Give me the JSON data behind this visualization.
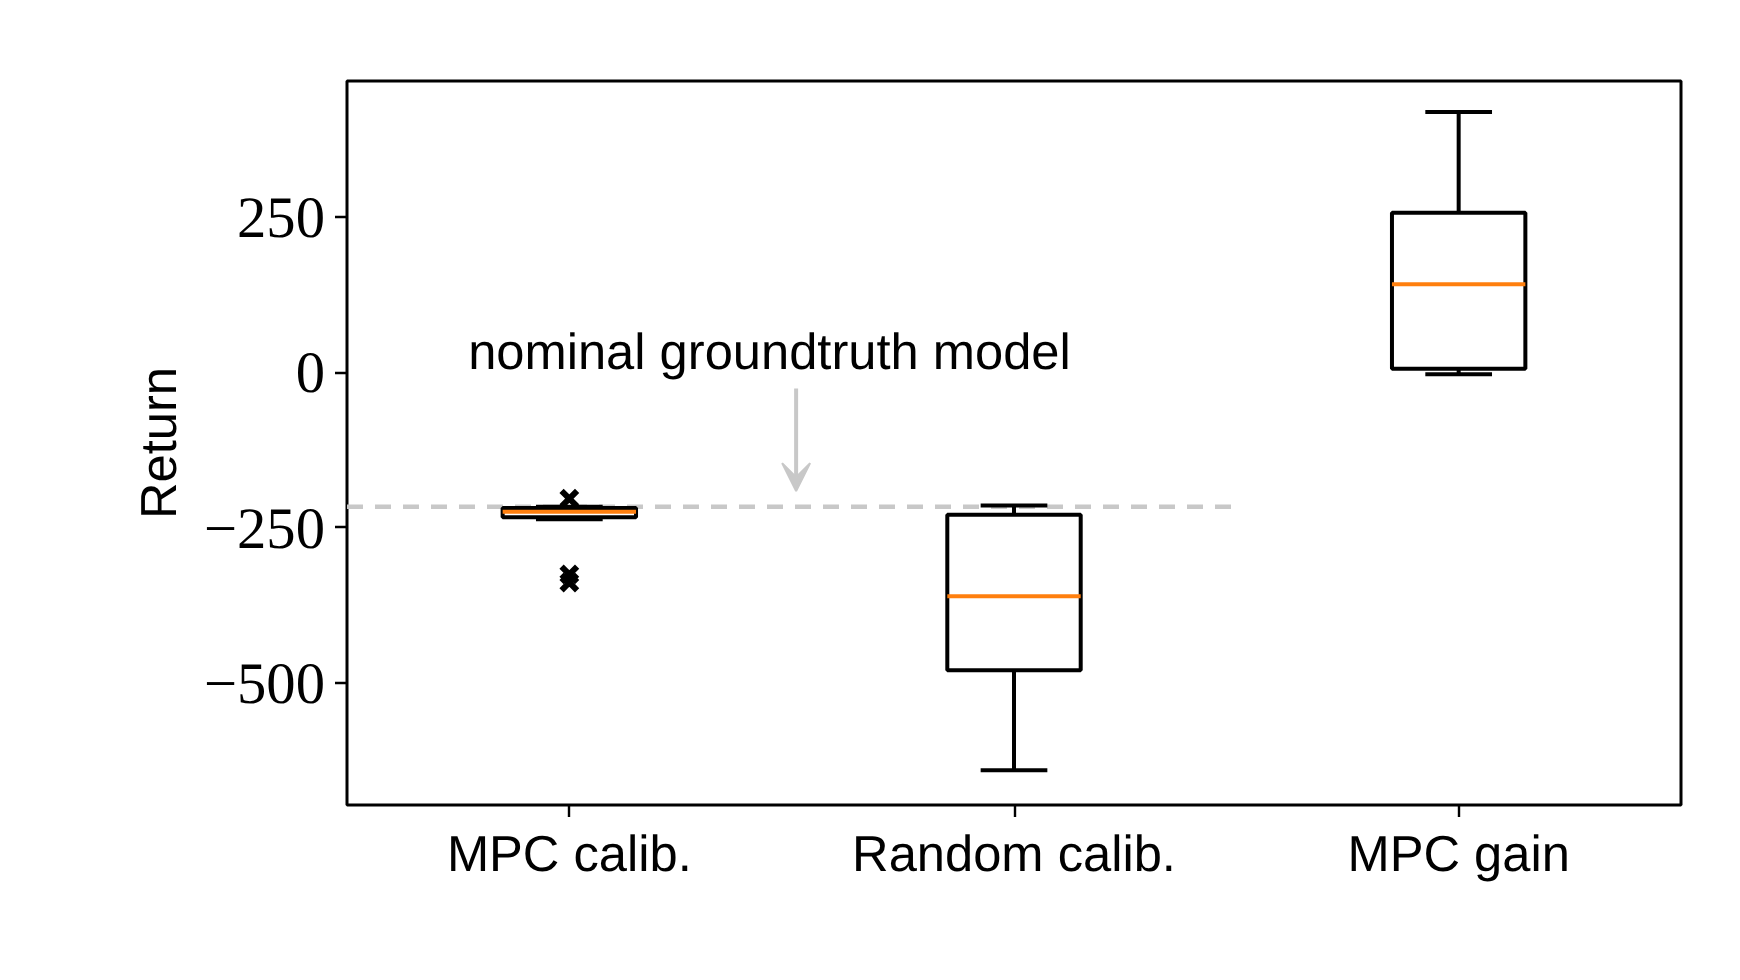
{
  "chart_data": {
    "type": "box",
    "categories": [
      "MPC calib.",
      "Random calib.",
      "MPC gain"
    ],
    "ylabel": "Return",
    "boxes": [
      {
        "low": -236,
        "q1": -233,
        "median": -224,
        "q3": -218,
        "high": -216,
        "outliers": [
          -203,
          -325,
          -338
        ]
      },
      {
        "low": -640,
        "q1": -479,
        "median": -360,
        "q3": -229,
        "high": -214
      },
      {
        "low": -3,
        "q1": 6,
        "median": 142,
        "q3": 257,
        "high": 419
      }
    ],
    "color": "#000000",
    "ylim": [
      -696,
      469
    ],
    "yticks": [
      {
        "value": -500,
        "label": "−500"
      },
      {
        "value": -250,
        "label": "−250"
      },
      0,
      250
    ],
    "ref_lines": [
      {
        "axis": "y",
        "value": -216,
        "label": "nominal groundtruth model",
        "color": "#c8c8c8",
        "line_style": "dashed"
      }
    ],
    "grid": false
  }
}
